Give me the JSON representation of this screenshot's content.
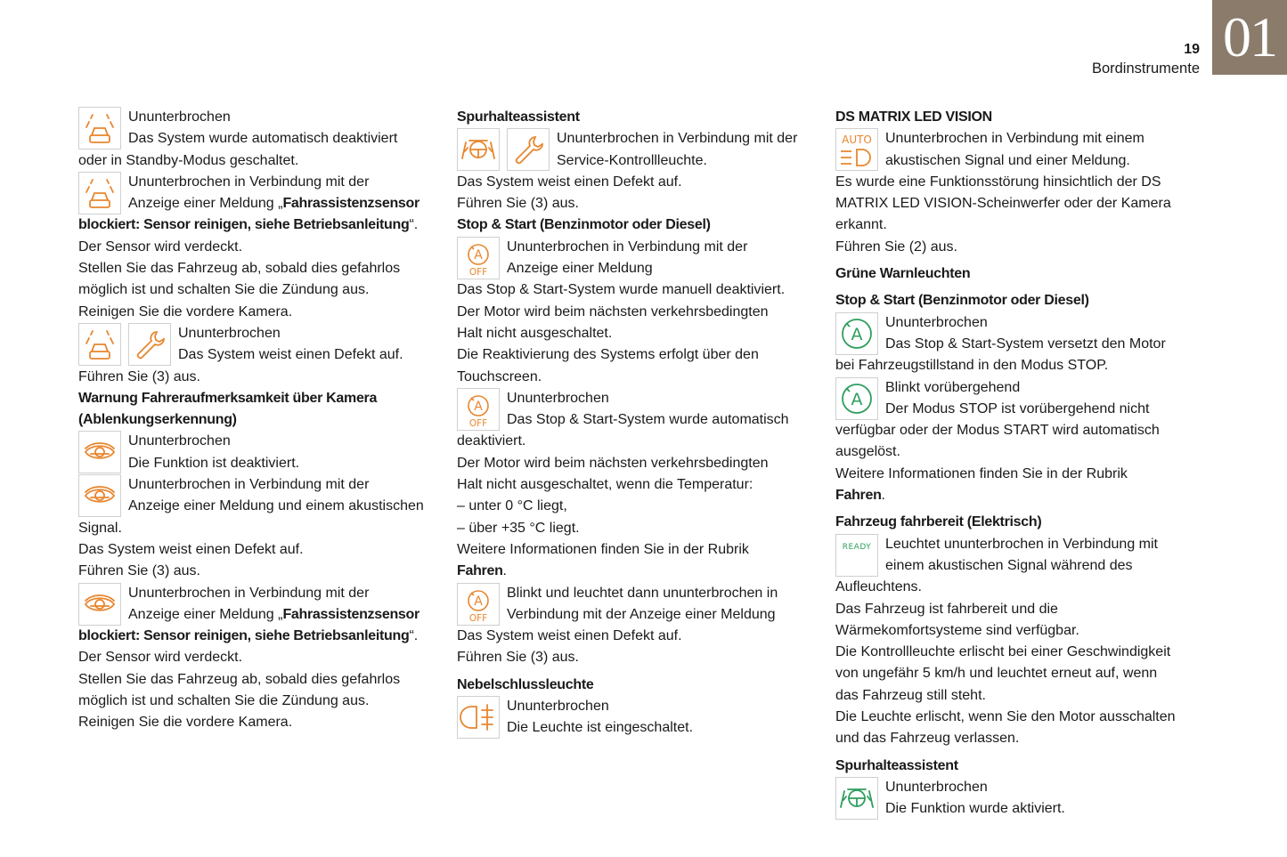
{
  "header": {
    "chapter": "01",
    "page_number": "19",
    "section": "Bordinstrumente"
  },
  "colors": {
    "chapter_tab": "#8b7b6b",
    "warning_orange": "#e8862f",
    "indicator_green": "#2e9e5e"
  },
  "columns": [
    {
      "blocks": [
        {
          "icons": [
            "camera-car-icon"
          ],
          "lines": [
            "Ununterbrochen",
            "Das System wurde automatisch deaktiviert",
            "oder in Standby-Modus geschaltet."
          ]
        },
        {
          "icons": [
            "camera-car-icon"
          ],
          "lines": [
            "Ununterbrochen in Verbindung mit der",
            [
              {
                "text": "Anzeige einer Meldung „"
              },
              {
                "text": "Fahrassistenzsensor",
                "bold": true
              }
            ],
            [
              {
                "text": "blockiert: Sensor reinigen, siehe Betriebsanleitung",
                "bold": true
              },
              {
                "text": "“."
              }
            ],
            "Der Sensor wird verdeckt.",
            "Stellen Sie das Fahrzeug ab, sobald dies gefahrlos",
            "möglich ist und schalten Sie die Zündung aus.",
            "Reinigen Sie die vordere Kamera."
          ]
        },
        {
          "icons": [
            "camera-car-icon",
            "wrench-icon"
          ],
          "lines": [
            "Ununterbrochen",
            "Das System weist einen Defekt auf.",
            "Führen Sie (3) aus."
          ]
        },
        {
          "heading": [
            "Warnung Fahreraufmerksamkeit über Kamera",
            "(Ablenkungserkennung)"
          ]
        },
        {
          "icons": [
            "driver-eye-icon"
          ],
          "lines": [
            "Ununterbrochen",
            "Die Funktion ist deaktiviert."
          ]
        },
        {
          "icons": [
            "driver-eye-icon"
          ],
          "lines": [
            "Ununterbrochen in Verbindung mit der",
            "Anzeige einer Meldung und einem akustischen",
            "Signal.",
            "Das System weist einen Defekt auf.",
            "Führen Sie (3) aus."
          ]
        },
        {
          "icons": [
            "driver-eye-icon"
          ],
          "lines": [
            "Ununterbrochen in Verbindung mit der",
            [
              {
                "text": "Anzeige einer Meldung „"
              },
              {
                "text": "Fahrassistenzsensor",
                "bold": true
              }
            ],
            [
              {
                "text": "blockiert: Sensor reinigen, siehe Betriebsanleitung",
                "bold": true
              },
              {
                "text": "“."
              }
            ],
            "Der Sensor wird verdeckt.",
            "Stellen Sie das Fahrzeug ab, sobald dies gefahrlos",
            "möglich ist und schalten Sie die Zündung aus.",
            "Reinigen Sie die vordere Kamera."
          ]
        }
      ]
    },
    {
      "blocks": [
        {
          "heading": [
            "Spurhalteassistent"
          ]
        },
        {
          "icons": [
            "lane-assist-orange-icon",
            "wrench-icon"
          ],
          "lines": [
            "Ununterbrochen in Verbindung mit der",
            "Service-Kontrollleuchte.",
            "Das System weist einen Defekt auf.",
            "Führen Sie (3) aus."
          ]
        },
        {
          "heading": [
            "Stop & Start (Benzinmotor oder Diesel)"
          ]
        },
        {
          "icons": [
            "stop-start-off-icon"
          ],
          "lines": [
            "Ununterbrochen in Verbindung mit der",
            "Anzeige einer Meldung",
            "Das Stop & Start-System wurde manuell deaktiviert.",
            "Der Motor wird beim nächsten verkehrsbedingten",
            "Halt nicht ausgeschaltet.",
            "Die Reaktivierung des Systems erfolgt über den",
            "Touchscreen."
          ]
        },
        {
          "icons": [
            "stop-start-off-icon"
          ],
          "lines": [
            "Ununterbrochen",
            "Das Stop & Start-System wurde automatisch",
            "deaktiviert.",
            "Der Motor wird beim nächsten verkehrsbedingten",
            "Halt nicht ausgeschaltet, wenn die Temperatur:",
            "–  unter 0 °C liegt,",
            "–  über +35 °C liegt.",
            "Weitere Informationen finden Sie in der Rubrik",
            [
              {
                "text": "Fahren",
                "bold": true
              },
              {
                "text": "."
              }
            ]
          ]
        },
        {
          "icons": [
            "stop-start-off-icon"
          ],
          "lines": [
            "Blinkt und leuchtet dann ununterbrochen in",
            "Verbindung mit der Anzeige einer Meldung",
            "Das System weist einen Defekt auf.",
            "Führen Sie (3) aus."
          ]
        },
        {
          "heading": [
            "Nebelschlussleuchte"
          ],
          "spaced": true
        },
        {
          "icons": [
            "rear-fog-light-icon"
          ],
          "lines": [
            "Ununterbrochen",
            "Die Leuchte ist eingeschaltet."
          ]
        }
      ]
    },
    {
      "blocks": [
        {
          "heading": [
            "DS MATRIX LED VISION"
          ]
        },
        {
          "icons": [
            "auto-headlight-icon"
          ],
          "lines": [
            "Ununterbrochen in Verbindung mit einem",
            "akustischen Signal und einer Meldung.",
            "Es wurde eine Funktionsstörung hinsichtlich der DS",
            "MATRIX LED VISION-Scheinwerfer oder der Kamera",
            "erkannt.",
            "Führen Sie (2) aus."
          ]
        },
        {
          "heading": [
            "Grüne Warnleuchten"
          ],
          "spaced": true
        },
        {
          "heading": [
            "Stop & Start (Benzinmotor oder Diesel)"
          ],
          "spaced": true
        },
        {
          "icons": [
            "stop-start-green-icon"
          ],
          "lines": [
            "Ununterbrochen",
            "Das Stop & Start-System versetzt den Motor",
            "bei Fahrzeugstillstand in den Modus STOP."
          ]
        },
        {
          "icons": [
            "stop-start-green-icon"
          ],
          "lines": [
            "Blinkt vorübergehend",
            "Der Modus STOP ist vorübergehend nicht",
            "verfügbar oder der Modus START wird automatisch",
            "ausgelöst.",
            "Weitere Informationen finden Sie in der Rubrik",
            [
              {
                "text": "Fahren",
                "bold": true
              },
              {
                "text": "."
              }
            ]
          ]
        },
        {
          "heading": [
            "Fahrzeug fahrbereit (Elektrisch)"
          ],
          "spaced": true
        },
        {
          "icons": [
            "ready-icon"
          ],
          "icon_text": "READY",
          "lines": [
            "Leuchtet ununterbrochen in Verbindung mit",
            "einem akustischen Signal während des",
            "Aufleuchtens.",
            "Das Fahrzeug ist fahrbereit und die",
            "Wärmekomfortsysteme sind verfügbar.",
            "Die Kontrollleuchte erlischt bei einer Geschwindigkeit",
            "von ungefähr 5 km/h und leuchtet erneut auf, wenn",
            "das Fahrzeug still steht.",
            "Die Leuchte erlischt, wenn Sie den Motor ausschalten",
            "und das Fahrzeug verlassen."
          ]
        },
        {
          "heading": [
            "Spurhalteassistent"
          ],
          "spaced": true
        },
        {
          "icons": [
            "lane-assist-green-icon"
          ],
          "lines": [
            "Ununterbrochen",
            "Die Funktion wurde aktiviert."
          ]
        }
      ]
    }
  ]
}
